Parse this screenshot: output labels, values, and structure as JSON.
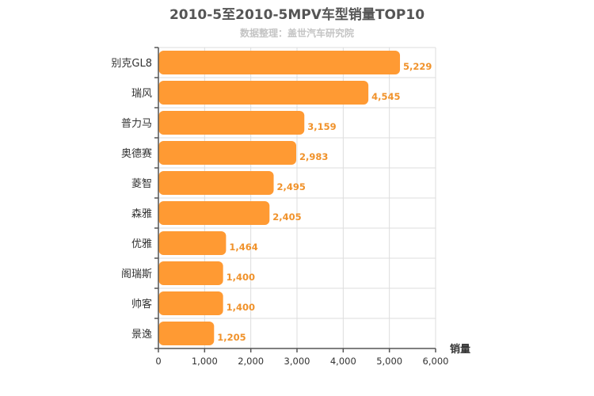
{
  "chart_data": {
    "type": "bar",
    "orientation": "horizontal",
    "title": "2010-5至2010-5MPV车型销量TOP10",
    "subtitle": "数据整理：盖世汽车研究院",
    "xlabel": "销量",
    "ylabel": "",
    "categories": [
      "别克GL8",
      "瑞风",
      "普力马",
      "奥德赛",
      "菱智",
      "森雅",
      "优雅",
      "阁瑞斯",
      "帅客",
      "景逸"
    ],
    "values": [
      5229,
      4545,
      3159,
      2983,
      2495,
      2405,
      1464,
      1400,
      1400,
      1205
    ],
    "value_labels": [
      "5,229",
      "4,545",
      "3,159",
      "2,983",
      "2,495",
      "2,405",
      "1,464",
      "1,400",
      "1,400",
      "1,205"
    ],
    "xlim": [
      0,
      6000
    ],
    "ticks": [
      0,
      1000,
      2000,
      3000,
      4000,
      5000,
      6000
    ],
    "tick_labels": [
      "0",
      "1,000",
      "2,000",
      "3,000",
      "4,000",
      "5,000",
      "6,000"
    ],
    "grid": true,
    "legend": "none",
    "colors": {
      "bar": "#ff9a33",
      "value_label": "#f0922b",
      "title": "#555555",
      "subtitle": "#c4c4c4"
    }
  }
}
